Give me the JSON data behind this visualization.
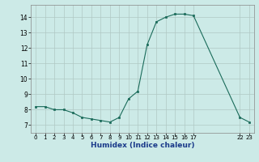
{
  "x": [
    0,
    1,
    2,
    3,
    4,
    5,
    6,
    7,
    8,
    9,
    10,
    11,
    12,
    13,
    14,
    15,
    16,
    17,
    22,
    23
  ],
  "y": [
    8.2,
    8.2,
    8.0,
    8.0,
    7.8,
    7.5,
    7.4,
    7.3,
    7.2,
    7.5,
    8.7,
    9.2,
    12.2,
    13.7,
    14.0,
    14.2,
    14.2,
    14.1,
    7.5,
    7.2
  ],
  "xlim": [
    -0.5,
    23.5
  ],
  "ylim": [
    6.5,
    14.8
  ],
  "yticks": [
    7,
    8,
    9,
    10,
    11,
    12,
    13,
    14
  ],
  "xlabel": "Humidex (Indice chaleur)",
  "line_color": "#1a6b5a",
  "marker_color": "#1a6b5a",
  "bg_color": "#cceae7",
  "grid_color": "#b0c8c4"
}
